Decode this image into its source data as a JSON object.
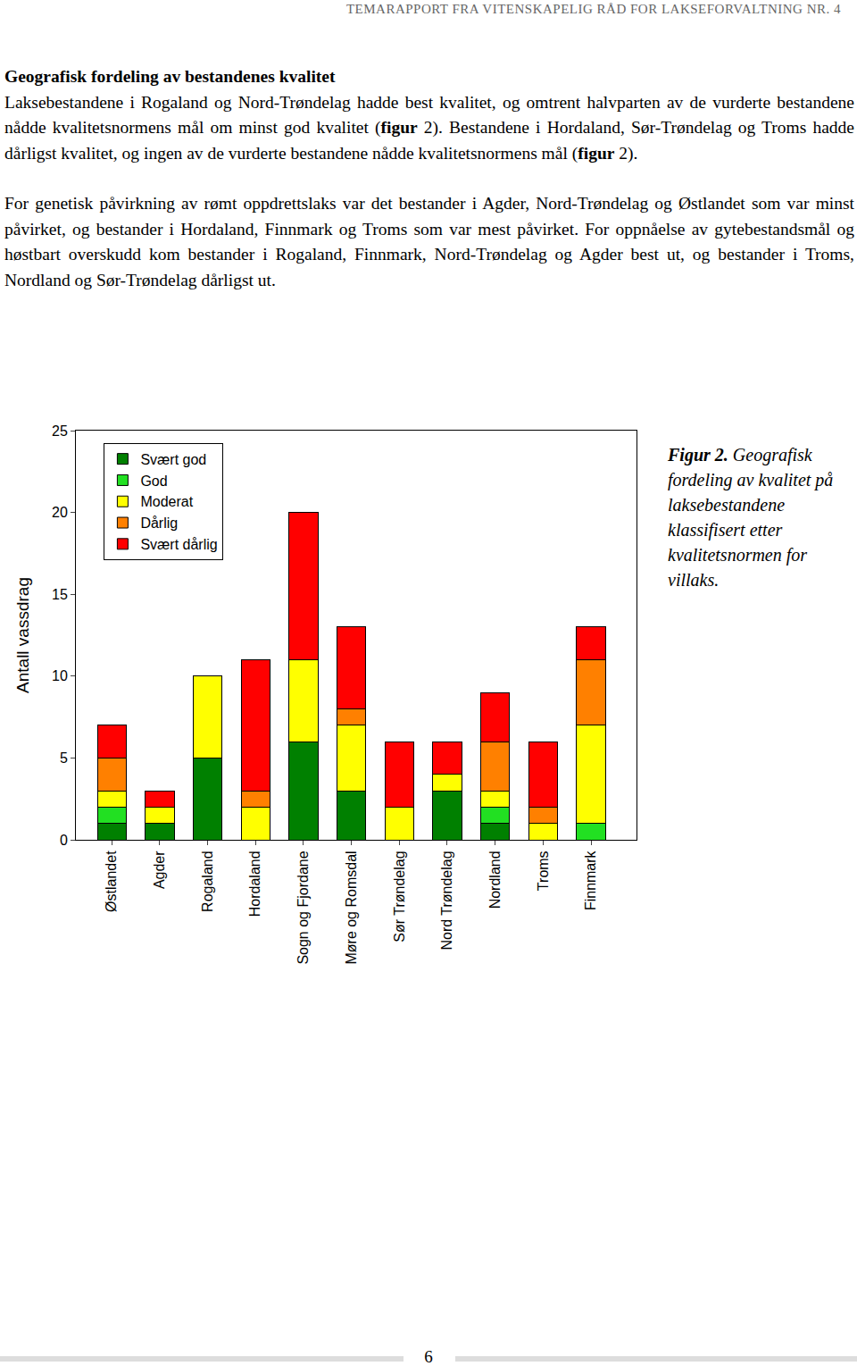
{
  "header": "TEMARAPPORT FRA VITENSKAPELIG RÅD FOR LAKSEFORVALTNING NR. 4",
  "heading": "Geografisk fordeling av bestandenes kvalitet",
  "paragraphs": [
    [
      {
        "text": "Laksebestandene i Rogaland og Nord-Trøndelag hadde best kvalitet, og omtrent halvparten av de vurderte bestandene nådde kvalitetsnormens mål om minst god kvalitet (",
        "bold": false
      },
      {
        "text": "figur",
        "bold": true
      },
      {
        "text": " 2). Bestandene i Hordaland, Sør-Trøndelag og Troms hadde dårligst kvalitet, og ingen av de vurderte bestandene nådde kvalitetsnormens mål (",
        "bold": false
      },
      {
        "text": "figur",
        "bold": true
      },
      {
        "text": " 2).",
        "bold": false
      }
    ],
    [
      {
        "text": "For genetisk påvirkning av rømt oppdrettslaks var det bestander i Agder, Nord-Trøndelag og Østlandet som var minst påvirket, og bestander i Hordaland, Finnmark og Troms som var mest påvirket. For oppnåelse av gytebestandsmål og høstbart overskudd kom bestander i Rogaland, Finnmark, Nord-Trøndelag og Agder best ut, og bestander i Troms, Nordland og Sør-Trøndelag dårligst ut.",
        "bold": false
      }
    ]
  ],
  "chart_data": {
    "type": "bar",
    "stacked": true,
    "y_label": "Antall vassdrag",
    "categories": [
      "Østlandet",
      "Agder",
      "Rogaland",
      "Hordaland",
      "Sogn og Fjordane",
      "Møre og Romsdal",
      "Sør Trøndelag",
      "Nord Trøndelag",
      "Nordland",
      "Troms",
      "Finnmark"
    ],
    "series": [
      {
        "name": "Svært god",
        "color": "#008000",
        "values": [
          1,
          1,
          5,
          0,
          6,
          3,
          0,
          3,
          1,
          0,
          0
        ]
      },
      {
        "name": "God",
        "color": "#22e022",
        "values": [
          1,
          0,
          0,
          0,
          0,
          0,
          0,
          0,
          1,
          0,
          1
        ]
      },
      {
        "name": "Moderat",
        "color": "#ffff00",
        "values": [
          1,
          1,
          5,
          2,
          5,
          4,
          2,
          1,
          1,
          1,
          6
        ]
      },
      {
        "name": "Dårlig",
        "color": "#ff8000",
        "values": [
          2,
          0,
          0,
          1,
          0,
          1,
          0,
          0,
          3,
          1,
          4
        ]
      },
      {
        "name": "Svært dårlig",
        "color": "#ff0000",
        "values": [
          2,
          1,
          0,
          8,
          9,
          5,
          4,
          2,
          3,
          4,
          2
        ]
      }
    ],
    "ylim": [
      0,
      25
    ],
    "yticks": [
      0,
      5,
      10,
      15,
      20,
      25
    ],
    "grid": false,
    "legend": "top-left"
  },
  "caption": {
    "label": "Figur 2.",
    "text": "Geografisk fordeling av kvalitet på laksebestandene klassifisert etter kvalitetsnormen for villaks."
  },
  "page_number": "6"
}
